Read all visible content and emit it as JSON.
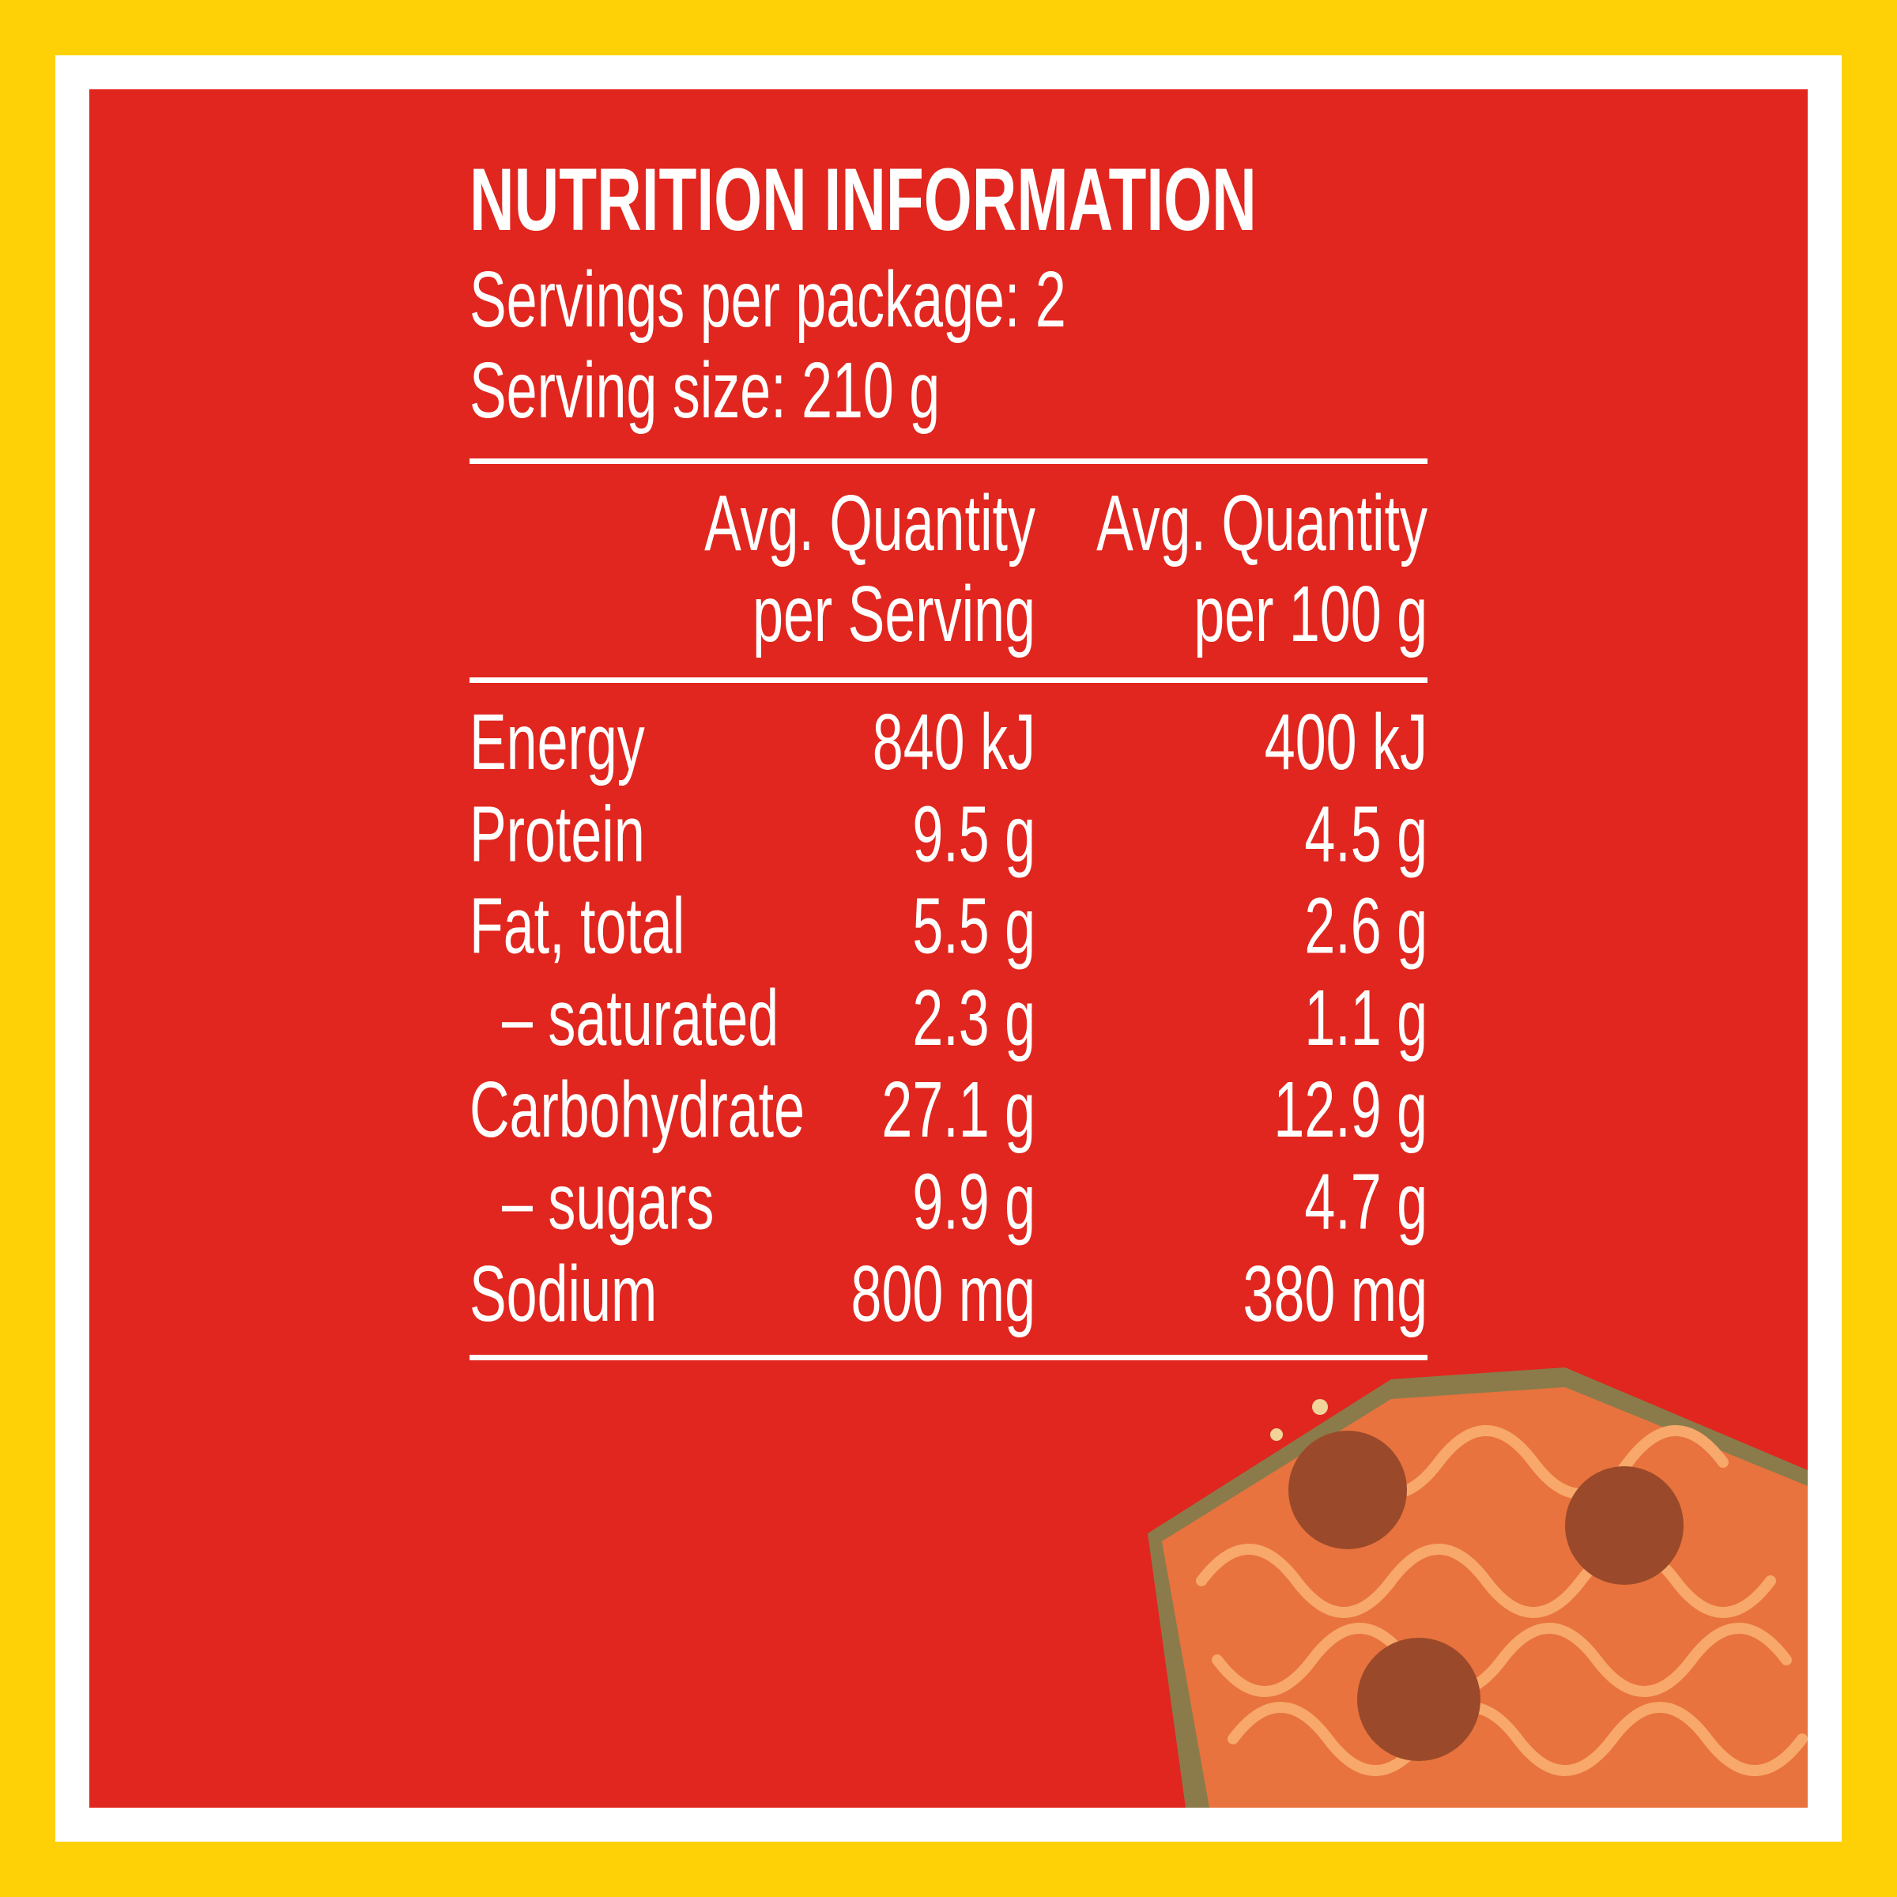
{
  "title": "NUTRITION INFORMATION",
  "servings_per_package": "Servings per package: 2",
  "serving_size": "Serving size: 210 g",
  "table": {
    "header": [
      [
        "Avg. Quantity",
        "per Serving"
      ],
      [
        "Avg. Quantity",
        "per 100 g"
      ]
    ],
    "rows": [
      [
        "Energy",
        "840 kJ",
        "400 kJ"
      ],
      [
        "Protein",
        "9.5 g",
        "4.5 g"
      ],
      [
        "Fat, total",
        "5.5 g",
        "2.6 g"
      ],
      [
        "– saturated",
        "2.3 g",
        "1.1 g"
      ],
      [
        "Carbohydrate",
        "27.1 g",
        "12.9 g"
      ],
      [
        "– sugars",
        "9.9 g",
        "4.7 g"
      ],
      [
        "Sodium",
        "800 mg",
        "380 mg"
      ]
    ]
  }
}
